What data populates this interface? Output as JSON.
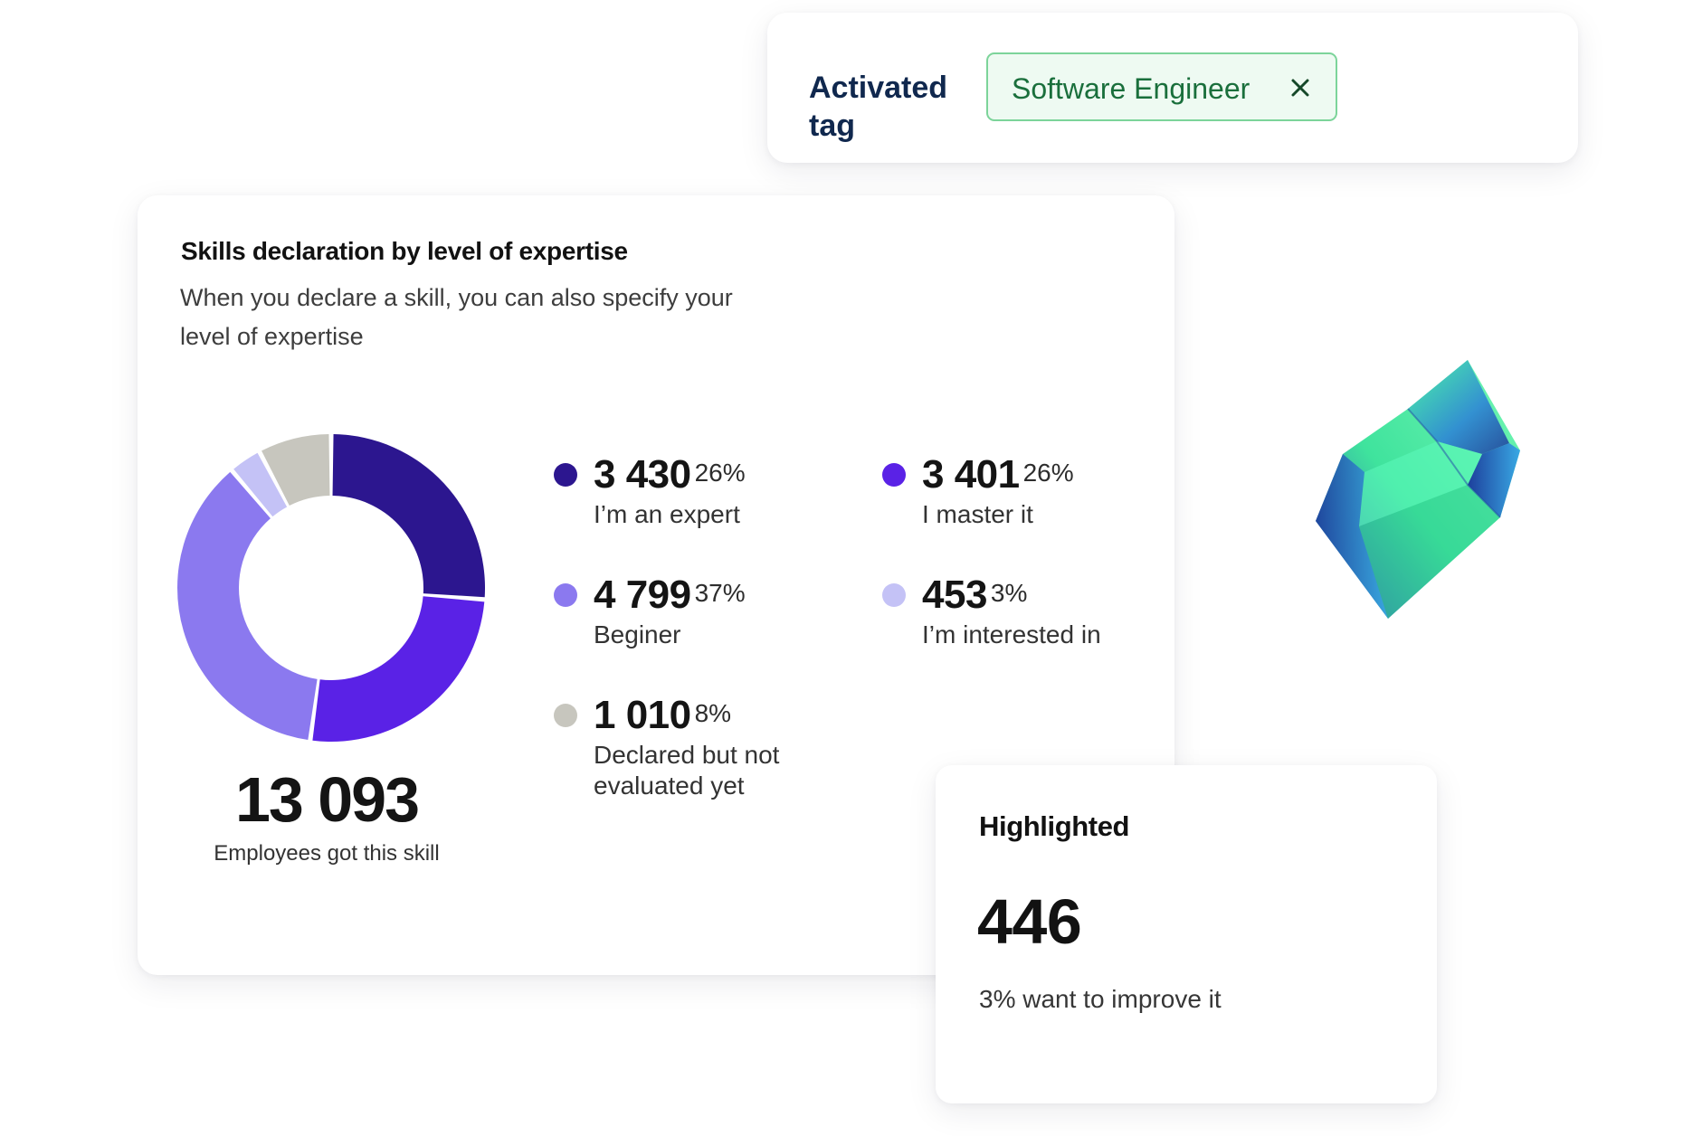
{
  "activated_tag": {
    "label": "Activated\ntag",
    "chip_text": "Software Engineer",
    "close_icon": "close-icon"
  },
  "skills": {
    "title": "Skills declaration by level of expertise",
    "subtitle": "When you declare a skill, you can also specify your level of expertise",
    "total": "13 093",
    "total_label": "Employees got this skill",
    "legend": [
      {
        "value": "3 430",
        "percent": "26%",
        "label": "I’m an expert",
        "color": "#2c168f"
      },
      {
        "value": "3 401",
        "percent": "26%",
        "label": "I master it",
        "color": "#5a22e6"
      },
      {
        "value": "4 799",
        "percent": "37%",
        "label": "Beginer",
        "color": "#8b79ef"
      },
      {
        "value": "453",
        "percent": "3%",
        "label": "I’m interested in",
        "color": "#c4c2f6"
      },
      {
        "value": "1 010",
        "percent": "8%",
        "label": "Declared but not evaluated yet",
        "color": "#c7c6be"
      }
    ]
  },
  "chart_data": {
    "type": "pie",
    "style": "donut",
    "title": "Skills declaration by level of expertise",
    "total": 13093,
    "slices": [
      {
        "label": "I’m an expert",
        "value": 3430,
        "percent": 26,
        "color": "#2c168f"
      },
      {
        "label": "I master it",
        "value": 3401,
        "percent": 26,
        "color": "#5a22e6"
      },
      {
        "label": "Beginer",
        "value": 4799,
        "percent": 37,
        "color": "#8b79ef"
      },
      {
        "label": "I’m interested in",
        "value": 453,
        "percent": 3,
        "color": "#c4c2f6"
      },
      {
        "label": "Declared but not evaluated yet",
        "value": 1010,
        "percent": 8,
        "color": "#c7c6be"
      }
    ]
  },
  "highlighted": {
    "title": "Highlighted",
    "value": "446",
    "text": "3% want to improve it"
  },
  "decorations": {
    "crystal": "gem-icon"
  }
}
